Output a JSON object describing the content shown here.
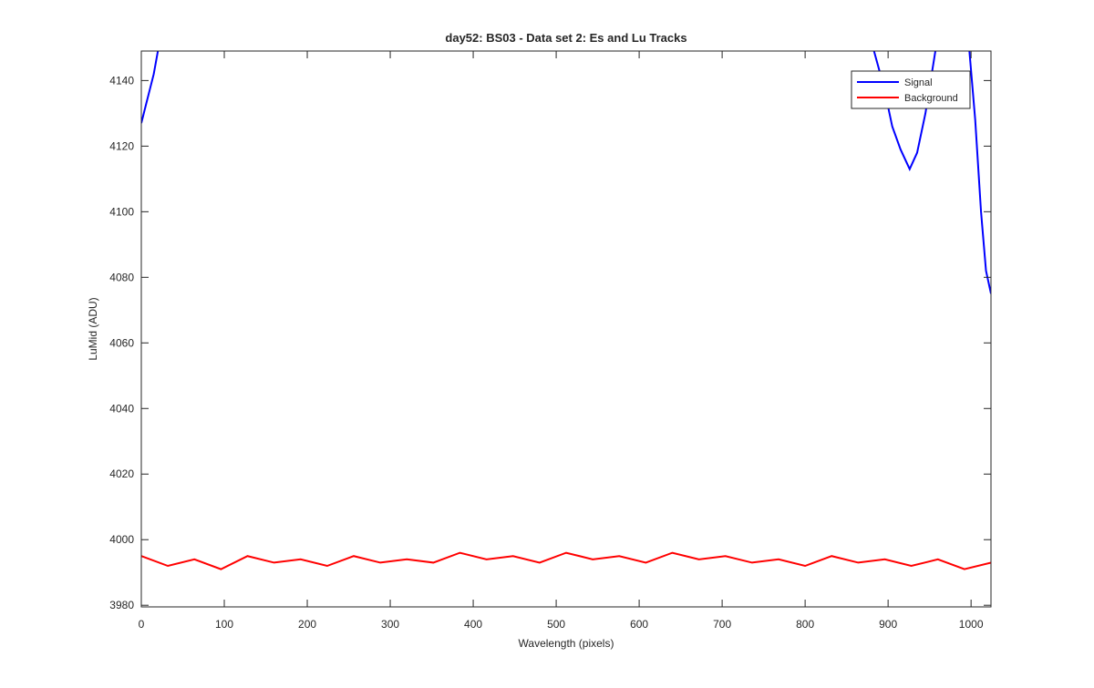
{
  "chart_data": {
    "type": "line",
    "title": "day52: BS03 - Data set 2: Es and Lu Tracks",
    "x_label": "Wavelength (pixels)",
    "y_label": "LuMid (ADU)",
    "xlim": [
      0,
      1024
    ],
    "ylim": [
      3979.5,
      4149
    ],
    "xticks": [
      0,
      100,
      200,
      300,
      400,
      500,
      600,
      700,
      800,
      900,
      1000
    ],
    "yticks": [
      3980,
      4000,
      4020,
      4040,
      4060,
      4080,
      4100,
      4120,
      4140
    ],
    "legend": "top-right",
    "series": [
      {
        "name": "Signal",
        "color": "#0000ff",
        "x": [
          0,
          5,
          10,
          15,
          20,
          450,
          883,
          895,
          905,
          915,
          926,
          935,
          945,
          957,
          977,
          998,
          1005,
          1012,
          1018,
          1024
        ],
        "values": [
          4127,
          4132,
          4137,
          4142,
          4149,
          null,
          4149,
          4138,
          4126,
          4119,
          4113,
          4118,
          4130,
          4149,
          null,
          4149,
          4128,
          4100,
          4082,
          4075
        ]
      },
      {
        "name": "Background",
        "color": "#ff0000",
        "x": [
          0,
          32,
          64,
          96,
          128,
          160,
          192,
          224,
          256,
          288,
          320,
          352,
          384,
          416,
          448,
          480,
          512,
          544,
          576,
          608,
          640,
          672,
          704,
          736,
          768,
          800,
          832,
          864,
          896,
          928,
          960,
          992,
          1024
        ],
        "values": [
          3995,
          3992,
          3994,
          3991,
          3995,
          3993,
          3994,
          3992,
          3995,
          3993,
          3994,
          3993,
          3996,
          3994,
          3995,
          3993,
          3996,
          3994,
          3995,
          3993,
          3996,
          3994,
          3995,
          3993,
          3994,
          3992,
          3995,
          3993,
          3994,
          3992,
          3994,
          3991,
          3993
        ]
      }
    ]
  }
}
